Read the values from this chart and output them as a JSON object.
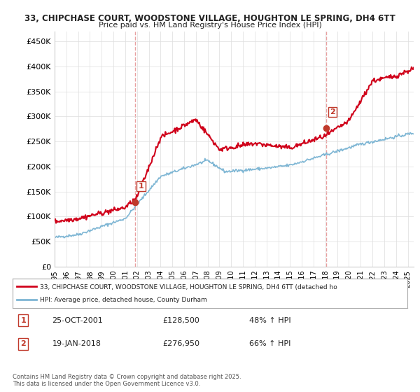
{
  "title1": "33, CHIPCHASE COURT, WOODSTONE VILLAGE, HOUGHTON LE SPRING, DH4 6TT",
  "title2": "Price paid vs. HM Land Registry's House Price Index (HPI)",
  "ylabel": "",
  "xlim_start": 1995.0,
  "xlim_end": 2025.5,
  "ylim": [
    0,
    470000
  ],
  "yticks": [
    0,
    50000,
    100000,
    150000,
    200000,
    250000,
    300000,
    350000,
    400000,
    450000
  ],
  "ytick_labels": [
    "£0",
    "£50K",
    "£100K",
    "£150K",
    "£200K",
    "£250K",
    "£300K",
    "£350K",
    "£400K",
    "£450K"
  ],
  "sale1_x": 2001.81,
  "sale1_y": 128500,
  "sale2_x": 2018.05,
  "sale2_y": 276950,
  "sale1_label": "1",
  "sale2_label": "2",
  "legend_line1": "33, CHIPCHASE COURT, WOODSTONE VILLAGE, HOUGHTON LE SPRING, DH4 6TT (detached ho",
  "legend_line2": "HPI: Average price, detached house, County Durham",
  "annotation1_date": "25-OCT-2001",
  "annotation1_price": "£128,500",
  "annotation1_pct": "48% ↑ HPI",
  "annotation2_date": "19-JAN-2018",
  "annotation2_price": "£276,950",
  "annotation2_pct": "66% ↑ HPI",
  "footer": "Contains HM Land Registry data © Crown copyright and database right 2025.\nThis data is licensed under the Open Government Licence v3.0.",
  "line_color_red": "#d0021b",
  "line_color_blue": "#7EB6D4",
  "vline_color": "#e8a0a0",
  "dot_color_red": "#c0392b",
  "background_color": "#ffffff",
  "grid_color": "#dddddd"
}
